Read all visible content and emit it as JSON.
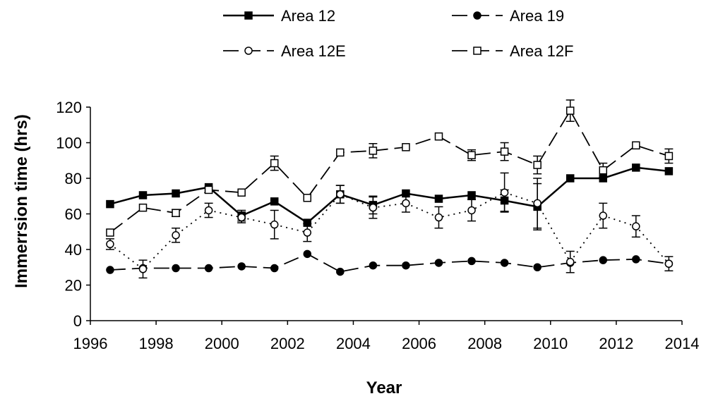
{
  "chart_data": {
    "type": "line",
    "xlabel": "Year",
    "ylabel": "Immerrsion time (hrs)",
    "xlim": [
      1996,
      2014
    ],
    "ylim": [
      0,
      120
    ],
    "xticks": [
      1996,
      1998,
      2000,
      2002,
      2004,
      2006,
      2008,
      2010,
      2012,
      2014
    ],
    "yticks": [
      0,
      20,
      40,
      60,
      80,
      100,
      120
    ],
    "legend_position": "top",
    "x": [
      1996.6,
      1997.6,
      1998.6,
      1999.6,
      2000.6,
      2001.6,
      2002.6,
      2003.6,
      2004.6,
      2005.6,
      2006.6,
      2007.6,
      2008.6,
      2009.6,
      2010.6,
      2011.6,
      2012.6,
      2013.6
    ],
    "series": [
      {
        "name": "Area 12",
        "style": "solid",
        "marker": "filled-square",
        "values": [
          65.5,
          70.5,
          71.5,
          75,
          59,
          67,
          55,
          71,
          65,
          71.5,
          68.5,
          70.5,
          67.5,
          64,
          80,
          80,
          86,
          84
        ],
        "errors": [
          0,
          0,
          0,
          0,
          3,
          0,
          0,
          5,
          5,
          0,
          0,
          0,
          6,
          13,
          0,
          0,
          0,
          0
        ]
      },
      {
        "name": "Area 19",
        "style": "long-dash",
        "marker": "filled-circle",
        "values": [
          28.5,
          29.5,
          29.5,
          29.5,
          30.5,
          29.5,
          37.5,
          27.5,
          31,
          31,
          32.5,
          33.5,
          32.5,
          30,
          32.5,
          34,
          34.5,
          32
        ],
        "errors": [
          0,
          0,
          0,
          0,
          0,
          0,
          0,
          0,
          0,
          0,
          0,
          0,
          0,
          0,
          0,
          0,
          0,
          0
        ]
      },
      {
        "name": "Area 12E",
        "style": "dotted",
        "marker": "open-circle",
        "values": [
          43,
          29,
          48,
          62,
          58,
          54,
          49.5,
          71,
          63.5,
          66,
          58,
          62,
          72,
          66,
          33,
          59,
          53,
          32
        ],
        "errors": [
          3,
          5,
          4,
          4,
          3,
          8,
          5,
          5,
          6,
          5,
          6,
          6,
          11,
          14,
          6,
          7,
          6,
          4
        ]
      },
      {
        "name": "Area 12F",
        "style": "long-dash",
        "marker": "open-square",
        "values": [
          49.5,
          63.5,
          60.5,
          73.5,
          72,
          88.5,
          69,
          94.5,
          95.5,
          97.5,
          103.5,
          93,
          95,
          87.5,
          118,
          84.5,
          98.5,
          92.5
        ],
        "errors": [
          0,
          0,
          2,
          0,
          0,
          4,
          0,
          0,
          4,
          0,
          0,
          3,
          5,
          5,
          6,
          4,
          0,
          4
        ]
      }
    ]
  }
}
